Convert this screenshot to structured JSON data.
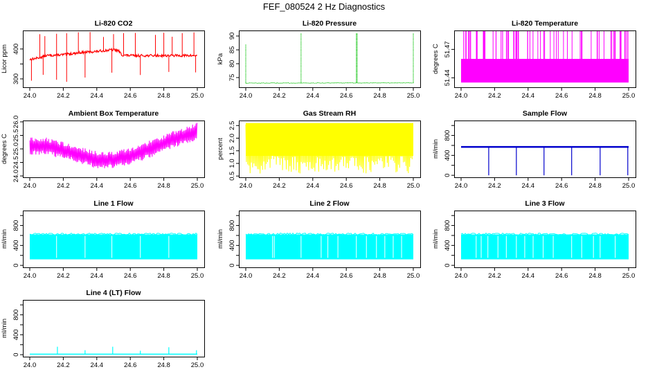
{
  "figure": {
    "title": "FEF_080524  2 Hz Diagnostics"
  },
  "chart_data": [
    {
      "id": "co2",
      "type": "line",
      "title": "Li-820 CO2",
      "ylabel": "Licor ppm",
      "color": "#ff0000",
      "xlim": [
        24.0,
        25.0
      ],
      "ylim": [
        272,
        462
      ],
      "xticks": [
        24.0,
        24.2,
        24.4,
        24.6,
        24.8,
        25.0
      ],
      "xtick_labels": [
        "24.0",
        "24.2",
        "24.4",
        "24.6",
        "24.8",
        "25.0"
      ],
      "yticks": [
        300,
        350,
        400
      ],
      "ytick_labels": [
        "300",
        "",
        "400"
      ],
      "series": [
        {
          "name": "CO2",
          "x": [
            24.0,
            24.05,
            24.1,
            24.2,
            24.3,
            24.4,
            24.45,
            24.5,
            24.53,
            24.55,
            24.6,
            24.7,
            24.8,
            24.9,
            25.0
          ],
          "y": [
            365,
            370,
            378,
            381,
            388,
            392,
            395,
            398,
            394,
            380,
            378,
            378,
            378,
            378,
            378
          ],
          "spikes_up": [
            24.06,
            24.09,
            24.16,
            24.22,
            24.29,
            24.36,
            24.44,
            24.5,
            24.56,
            24.63,
            24.75,
            24.8,
            24.85,
            24.91,
            24.98
          ],
          "spikes_down": [
            24.01,
            24.08,
            24.16,
            24.22,
            24.33,
            24.49,
            24.66,
            24.83,
            24.99
          ],
          "spike_top": 460,
          "spike_bottom": 285,
          "noise": 4
        }
      ]
    },
    {
      "id": "pressure",
      "type": "line",
      "title": "Li-820 Pressure",
      "ylabel": "kPa",
      "color": "#00c000",
      "xlim": [
        24.0,
        25.0
      ],
      "ylim": [
        71.5,
        92
      ],
      "xticks": [
        24.0,
        24.2,
        24.4,
        24.6,
        24.8,
        25.0
      ],
      "xtick_labels": [
        "24.0",
        "24.2",
        "24.4",
        "24.6",
        "24.8",
        "25.0"
      ],
      "yticks": [
        75,
        80,
        85,
        90
      ],
      "ytick_labels": [
        "75",
        "80",
        "85",
        "90"
      ],
      "series": [
        {
          "name": "Pressure",
          "x": [
            24.0,
            25.0
          ],
          "y": [
            73.0,
            73.1
          ],
          "spikes_up": [
            24.0,
            24.33,
            24.66,
            24.665,
            25.0
          ],
          "spike_heights": [
            87,
            91,
            91,
            91,
            91
          ],
          "noise": 0.1
        }
      ]
    },
    {
      "id": "temp",
      "type": "line",
      "title": "Li-820 Temperature",
      "ylabel": "degrees C",
      "color": "#ff00ff",
      "xlim": [
        24.0,
        25.0
      ],
      "ylim": [
        51.43,
        51.49
      ],
      "xticks": [
        24.0,
        24.2,
        24.4,
        24.6,
        24.8,
        25.0
      ],
      "xtick_labels": [
        "24.0",
        "24.2",
        "24.4",
        "24.6",
        "24.8",
        "25.0"
      ],
      "yticks": [
        51.44,
        51.47
      ],
      "ytick_labels": [
        "51.44",
        "51.47"
      ],
      "series": [
        {
          "name": "Temperature",
          "band": [
            51.435,
            51.46
          ],
          "spike_top": 51.49,
          "spike_count": 70
        }
      ]
    },
    {
      "id": "ambient",
      "type": "line",
      "title": "Ambient Box Temperature",
      "ylabel": "degrees C",
      "color": "#ff00ff",
      "xlim": [
        24.0,
        25.0
      ],
      "ylim": [
        23.95,
        26.05
      ],
      "xticks": [
        24.0,
        24.2,
        24.4,
        24.6,
        24.8,
        25.0
      ],
      "xtick_labels": [
        "24.0",
        "24.2",
        "24.4",
        "24.6",
        "24.8",
        "25.0"
      ],
      "yticks": [
        24.0,
        24.5,
        25.0,
        25.5,
        26.0
      ],
      "ytick_labels": [
        "24.0",
        "24.5",
        "25.0",
        "25.5",
        "26.0"
      ],
      "series": [
        {
          "name": "Ambient",
          "x": [
            24.0,
            24.1,
            24.2,
            24.3,
            24.4,
            24.5,
            24.6,
            24.7,
            24.8,
            24.9,
            25.0
          ],
          "y": [
            25.1,
            25.1,
            24.95,
            24.75,
            24.6,
            24.6,
            24.75,
            24.95,
            25.2,
            25.45,
            25.65
          ],
          "amplitude": 0.32
        }
      ]
    },
    {
      "id": "rh",
      "type": "line",
      "title": "Gas Stream RH",
      "ylabel": "percent",
      "color": "#ffff00",
      "xlim": [
        24.0,
        25.0
      ],
      "ylim": [
        0.45,
        2.7
      ],
      "xticks": [
        24.0,
        24.2,
        24.4,
        24.6,
        24.8,
        25.0
      ],
      "xtick_labels": [
        "24.0",
        "24.2",
        "24.4",
        "24.6",
        "24.8",
        "25.0"
      ],
      "yticks": [
        0.5,
        1.0,
        1.5,
        2.0,
        2.5
      ],
      "ytick_labels": [
        "0.5",
        "1.0",
        "1.5",
        "2.0",
        "2.5"
      ],
      "series": [
        {
          "name": "RH",
          "band": [
            1.3,
            2.6
          ],
          "low_min": 0.6
        }
      ]
    },
    {
      "id": "sample",
      "type": "line",
      "title": "Sample Flow",
      "ylabel": "ml/min",
      "color": "#0000cc",
      "xlim": [
        24.0,
        25.0
      ],
      "ylim": [
        -40,
        1100
      ],
      "xticks": [
        24.0,
        24.2,
        24.4,
        24.6,
        24.8,
        25.0
      ],
      "xtick_labels": [
        "24.0",
        "24.2",
        "24.4",
        "24.6",
        "24.8",
        "25.0"
      ],
      "yticks": [
        0,
        200,
        400,
        600,
        800,
        1000
      ],
      "ytick_labels": [
        "0",
        "",
        "400",
        "",
        "800",
        ""
      ],
      "series": [
        {
          "name": "Sample Flow",
          "x": [
            24.0,
            25.0
          ],
          "y": [
            570,
            570
          ],
          "drops": [
            24.165,
            24.33,
            24.495,
            24.66,
            24.83,
            24.995
          ],
          "drop_bottom": 0
        }
      ]
    },
    {
      "id": "line1",
      "type": "line",
      "title": "Line 1 Flow",
      "ylabel": "ml/min",
      "color": "#00ffff",
      "xlim": [
        24.0,
        25.0
      ],
      "ylim": [
        -40,
        1100
      ],
      "xticks": [
        24.0,
        24.2,
        24.4,
        24.6,
        24.8,
        25.0
      ],
      "xtick_labels": [
        "24.0",
        "24.2",
        "24.4",
        "24.6",
        "24.8",
        "25.0"
      ],
      "yticks": [
        0,
        200,
        400,
        600,
        800,
        1000
      ],
      "ytick_labels": [
        "0",
        "",
        "400",
        "",
        "800",
        ""
      ],
      "series": [
        {
          "name": "Line 1",
          "band": [
            120,
            620
          ],
          "gaps": [
            24.16,
            24.33,
            24.49,
            24.66,
            24.83
          ]
        }
      ]
    },
    {
      "id": "line2",
      "type": "line",
      "title": "Line 2 Flow",
      "ylabel": "ml/min",
      "color": "#00ffff",
      "xlim": [
        24.0,
        25.0
      ],
      "ylim": [
        -40,
        1100
      ],
      "xticks": [
        24.0,
        24.2,
        24.4,
        24.6,
        24.8,
        25.0
      ],
      "xtick_labels": [
        "24.0",
        "24.2",
        "24.4",
        "24.6",
        "24.8",
        "25.0"
      ],
      "yticks": [
        0,
        200,
        400,
        600,
        800,
        1000
      ],
      "ytick_labels": [
        "0",
        "",
        "400",
        "",
        "800",
        ""
      ],
      "series": [
        {
          "name": "Line 2",
          "band": [
            120,
            620
          ],
          "gaps": [
            24.16,
            24.17,
            24.33,
            24.45,
            24.49,
            24.55,
            24.66,
            24.72,
            24.78,
            24.83,
            24.88,
            24.93
          ]
        }
      ]
    },
    {
      "id": "line3",
      "type": "line",
      "title": "Line 3 Flow",
      "ylabel": "ml/min",
      "color": "#00ffff",
      "xlim": [
        24.0,
        25.0
      ],
      "ylim": [
        -40,
        1100
      ],
      "xticks": [
        24.0,
        24.2,
        24.4,
        24.6,
        24.8,
        25.0
      ],
      "xtick_labels": [
        "24.0",
        "24.2",
        "24.4",
        "24.6",
        "24.8",
        "25.0"
      ],
      "yticks": [
        0,
        200,
        400,
        600,
        800,
        1000
      ],
      "ytick_labels": [
        "0",
        "",
        "400",
        "",
        "800",
        ""
      ],
      "series": [
        {
          "name": "Line 3",
          "band": [
            120,
            620
          ],
          "gaps": [
            24.09,
            24.12,
            24.16,
            24.22,
            24.27,
            24.33,
            24.38,
            24.43,
            24.49,
            24.55,
            24.66,
            24.72,
            24.79,
            24.83,
            24.92
          ]
        }
      ]
    },
    {
      "id": "line4",
      "type": "line",
      "title": "Line 4 (LT) Flow",
      "ylabel": "ml/min",
      "color": "#00ffff",
      "xlim": [
        24.0,
        25.0
      ],
      "ylim": [
        -40,
        1100
      ],
      "xticks": [
        24.0,
        24.2,
        24.4,
        24.6,
        24.8,
        25.0
      ],
      "xtick_labels": [
        "24.0",
        "24.2",
        "24.4",
        "24.6",
        "24.8",
        "25.0"
      ],
      "yticks": [
        0,
        200,
        400,
        600,
        800,
        1000
      ],
      "ytick_labels": [
        "0",
        "",
        "400",
        "",
        "800",
        ""
      ],
      "series": [
        {
          "name": "Line 4",
          "x": [
            24.0,
            25.0
          ],
          "y": [
            10,
            10
          ],
          "spikes_up": [
            24.165,
            24.33,
            24.495,
            24.66,
            24.83,
            24.995
          ],
          "spike_heights": [
            160,
            90,
            160,
            80,
            150,
            90
          ]
        }
      ]
    }
  ]
}
